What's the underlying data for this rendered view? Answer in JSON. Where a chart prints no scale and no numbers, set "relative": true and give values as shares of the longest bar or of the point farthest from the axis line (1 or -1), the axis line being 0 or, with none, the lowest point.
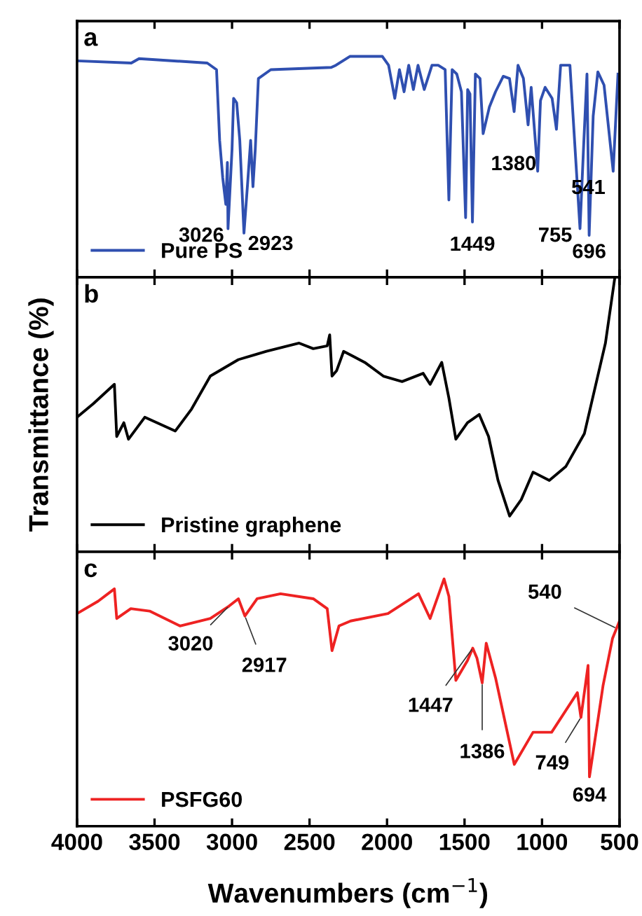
{
  "chart_data": [
    {
      "type": "line",
      "title": "a",
      "relative": true,
      "xlim": [
        4000,
        500
      ],
      "xticks": [
        4000,
        3500,
        3000,
        2500,
        2000,
        1500,
        1000,
        500
      ],
      "tick_labels": false,
      "legend": "bottom left",
      "grid": false,
      "marker": "none",
      "line_style": "solid",
      "series": [
        {
          "name": "Pure PS",
          "color": "#2f4fb0",
          "x": [
            4000,
            3650,
            3600,
            3160,
            3100,
            3080,
            3060,
            3040,
            3030,
            3026,
            3000,
            2990,
            2970,
            2950,
            2923,
            2900,
            2880,
            2865,
            2850,
            2830,
            2750,
            2360,
            2330,
            2240,
            2030,
            1990,
            1950,
            1920,
            1890,
            1860,
            1830,
            1800,
            1760,
            1710,
            1670,
            1625,
            1601,
            1580,
            1550,
            1520,
            1493,
            1480,
            1465,
            1449,
            1430,
            1400,
            1380,
            1340,
            1300,
            1250,
            1210,
            1180,
            1155,
            1120,
            1090,
            1070,
            1028,
            1010,
            980,
            935,
            907,
            880,
            820,
            755,
            730,
            710,
            696,
            670,
            640,
            600,
            541,
            510
          ],
          "values": [
            0.98,
            0.97,
            0.99,
            0.97,
            0.94,
            0.62,
            0.45,
            0.33,
            0.52,
            0.22,
            0.58,
            0.81,
            0.79,
            0.62,
            0.2,
            0.42,
            0.62,
            0.41,
            0.58,
            0.9,
            0.94,
            0.95,
            0.96,
            1.0,
            1.0,
            0.96,
            0.81,
            0.94,
            0.84,
            0.96,
            0.85,
            0.96,
            0.85,
            0.96,
            0.96,
            0.94,
            0.35,
            0.94,
            0.92,
            0.84,
            0.27,
            0.85,
            0.83,
            0.25,
            0.92,
            0.9,
            0.65,
            0.77,
            0.84,
            0.91,
            0.9,
            0.75,
            0.96,
            0.9,
            0.69,
            0.86,
            0.48,
            0.8,
            0.86,
            0.81,
            0.67,
            0.96,
            0.96,
            0.22,
            0.62,
            0.92,
            0.19,
            0.73,
            0.93,
            0.87,
            0.48,
            0.92
          ]
        }
      ],
      "annotations": [
        {
          "text": "3026",
          "x": 3026,
          "y": 0.22
        },
        {
          "text": "2923",
          "x": 2923,
          "y": 0.2
        },
        {
          "text": "1380",
          "x": 1380,
          "y": 0.65
        },
        {
          "text": "1449",
          "x": 1449,
          "y": 0.25
        },
        {
          "text": "755",
          "x": 755,
          "y": 0.22
        },
        {
          "text": "696",
          "x": 696,
          "y": 0.19
        },
        {
          "text": "541",
          "x": 541,
          "y": 0.48
        }
      ]
    },
    {
      "type": "line",
      "title": "b",
      "relative": true,
      "ylabel": "Transmittance (%)",
      "xlim": [
        4000,
        500
      ],
      "xticks": [
        4000,
        3500,
        3000,
        2500,
        2000,
        1500,
        1000,
        500
      ],
      "tick_labels": false,
      "legend": "bottom left",
      "grid": false,
      "marker": "none",
      "line_style": "solid",
      "series": [
        {
          "name": "Pristine graphene",
          "color": "#000000",
          "x": [
            4000,
            3894,
            3759,
            3744,
            3698,
            3668,
            3563,
            3366,
            3261,
            3140,
            2959,
            2778,
            2567,
            2476,
            2386,
            2370,
            2355,
            2325,
            2280,
            2144,
            2024,
            1903,
            1767,
            1722,
            1647,
            1601,
            1556,
            1481,
            1405,
            1345,
            1284,
            1209,
            1134,
            1058,
            953,
            847,
            727,
            591,
            530
          ],
          "values": [
            0.49,
            0.54,
            0.61,
            0.42,
            0.47,
            0.41,
            0.49,
            0.44,
            0.52,
            0.64,
            0.7,
            0.73,
            0.76,
            0.74,
            0.75,
            0.79,
            0.64,
            0.66,
            0.73,
            0.69,
            0.64,
            0.62,
            0.65,
            0.61,
            0.69,
            0.56,
            0.41,
            0.47,
            0.5,
            0.42,
            0.26,
            0.13,
            0.19,
            0.29,
            0.26,
            0.31,
            0.43,
            0.76,
            1.0
          ]
        }
      ]
    },
    {
      "type": "line",
      "title": "c",
      "relative": true,
      "xlabel": "Wavenumbers (cm$^{−1}$)",
      "xlim": [
        4000,
        500
      ],
      "xticks": [
        4000,
        3500,
        3000,
        2500,
        2000,
        1500,
        1000,
        500
      ],
      "tick_labels": "x",
      "legend": "bottom left",
      "grid": false,
      "marker": "none",
      "line_style": "solid",
      "series": [
        {
          "name": "PSFG60",
          "color": "#ee2222",
          "x": [
            4000,
            3864,
            3759,
            3744,
            3653,
            3532,
            3336,
            3140,
            3020,
            2959,
            2917,
            2838,
            2687,
            2476,
            2386,
            2355,
            2310,
            2235,
            1994,
            1797,
            1722,
            1632,
            1601,
            1556,
            1481,
            1447,
            1420,
            1386,
            1360,
            1300,
            1179,
            1058,
            938,
            772,
            749,
            703,
            694,
            606,
            545,
            500
          ],
          "values": [
            0.86,
            0.91,
            0.96,
            0.84,
            0.88,
            0.87,
            0.81,
            0.84,
            0.89,
            0.92,
            0.85,
            0.92,
            0.94,
            0.92,
            0.88,
            0.71,
            0.81,
            0.83,
            0.86,
            0.94,
            0.84,
            1.0,
            0.93,
            0.59,
            0.67,
            0.72,
            0.68,
            0.58,
            0.74,
            0.6,
            0.25,
            0.38,
            0.38,
            0.54,
            0.44,
            0.65,
            0.2,
            0.57,
            0.76,
            0.83
          ]
        }
      ],
      "annotations": [
        {
          "text": "3020",
          "x": 3020,
          "y": 0.89
        },
        {
          "text": "2917",
          "x": 2917,
          "y": 0.85
        },
        {
          "text": "1447",
          "x": 1447,
          "y": 0.72
        },
        {
          "text": "1386",
          "x": 1386,
          "y": 0.58
        },
        {
          "text": "749",
          "x": 749,
          "y": 0.44
        },
        {
          "text": "694",
          "x": 694,
          "y": 0.2
        },
        {
          "text": "540",
          "x": 520,
          "y": 0.8
        }
      ]
    }
  ]
}
